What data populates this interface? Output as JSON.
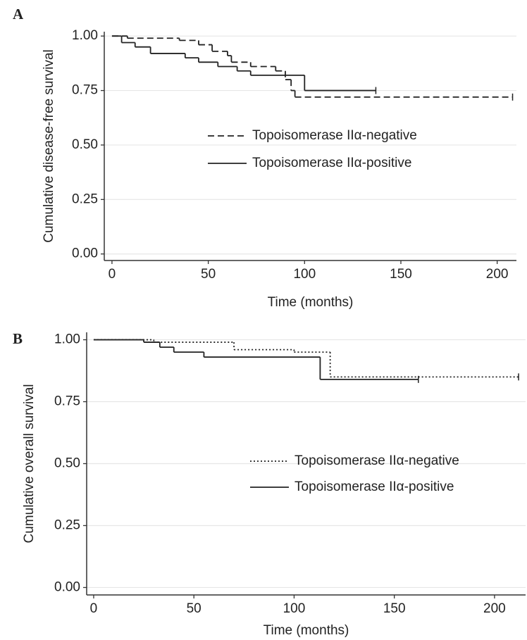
{
  "chart_data": [
    {
      "type": "step",
      "label": "A",
      "x_label": "Time (months)",
      "y_label": "Cumulative disease-free survival",
      "xlim": [
        -4,
        210
      ],
      "ylim": [
        -0.03,
        1.02
      ],
      "xticks": [
        0,
        50,
        100,
        150,
        200
      ],
      "yticks": [
        {
          "value": 0,
          "label": "0.00"
        },
        {
          "value": 0.25,
          "label": "0.25"
        },
        {
          "value": 0.5,
          "label": "0.50"
        },
        {
          "value": 0.75,
          "label": "0.75"
        },
        {
          "value": 1,
          "label": "1.00"
        }
      ],
      "grid": true,
      "series": [
        {
          "name": "Topoisomerase IIα-negative",
          "color": "#222222",
          "dash": "dashed",
          "x": [
            0,
            8,
            35,
            45,
            52,
            60,
            62,
            72,
            85,
            90,
            93,
            95,
            208
          ],
          "values": [
            1.0,
            0.99,
            0.98,
            0.96,
            0.93,
            0.91,
            0.88,
            0.86,
            0.84,
            0.8,
            0.75,
            0.72,
            0.72
          ]
        },
        {
          "name": "Topoisomerase IIα-positive",
          "color": "#222222",
          "dash": "solid",
          "x": [
            0,
            5,
            12,
            20,
            38,
            45,
            55,
            65,
            72,
            100,
            137
          ],
          "values": [
            1.0,
            0.97,
            0.95,
            0.92,
            0.9,
            0.88,
            0.86,
            0.84,
            0.82,
            0.75,
            0.75
          ]
        }
      ]
    },
    {
      "type": "step",
      "label": "B",
      "x_label": "Time (months)",
      "y_label": "Cumulative overall survival",
      "xlim": [
        -3.5,
        215.5
      ],
      "ylim": [
        -0.03,
        1.03
      ],
      "xticks": [
        0,
        50,
        100,
        150,
        200
      ],
      "yticks": [
        {
          "value": 0,
          "label": "0.00"
        },
        {
          "value": 0.25,
          "label": "0.25"
        },
        {
          "value": 0.5,
          "label": "0.50"
        },
        {
          "value": 0.75,
          "label": "0.75"
        },
        {
          "value": 1,
          "label": "1.00"
        }
      ],
      "grid": true,
      "series": [
        {
          "name": "Topoisomerase IIα-negative",
          "color": "#222222",
          "dash": "dotted",
          "x": [
            0,
            30,
            70,
            100,
            118,
            212
          ],
          "values": [
            1.0,
            0.99,
            0.96,
            0.95,
            0.85,
            0.85
          ]
        },
        {
          "name": "Topoisomerase IIα-positive",
          "color": "#222222",
          "dash": "solid",
          "x": [
            0,
            25,
            33,
            40,
            55,
            113,
            162
          ],
          "values": [
            1.0,
            0.99,
            0.97,
            0.95,
            0.93,
            0.84,
            0.84
          ]
        }
      ]
    }
  ]
}
